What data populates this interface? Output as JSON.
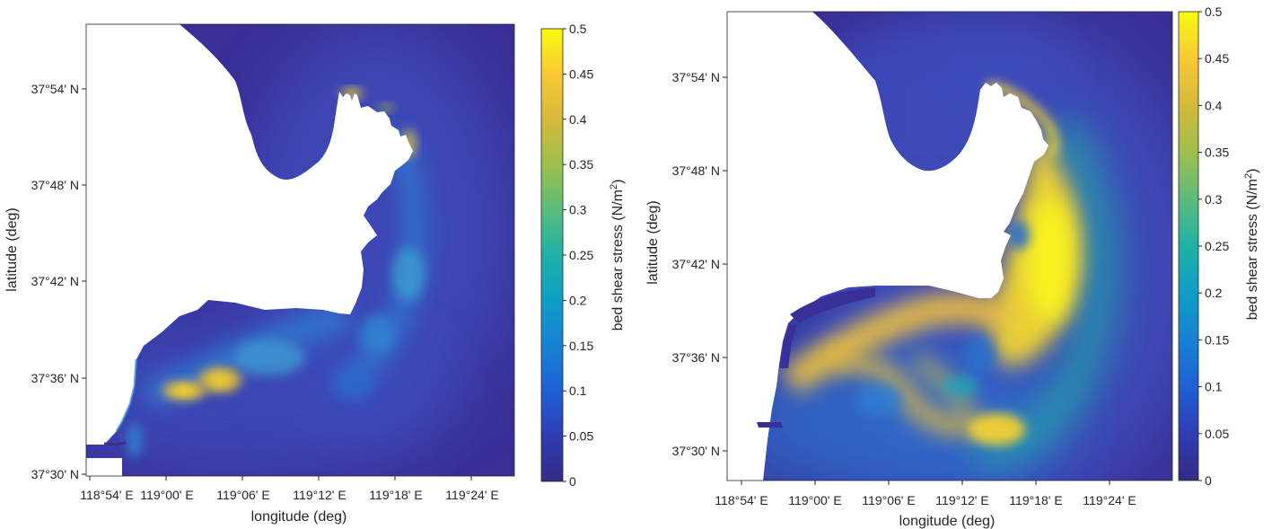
{
  "panels": [
    {
      "id": "left",
      "xlabel": "longitude (deg)",
      "ylabel": "latitude (deg)",
      "xticks": [
        "118°54' E",
        "119°00' E",
        "119°06' E",
        "119°12' E",
        "119°18' E",
        "119°24' E"
      ],
      "yticks": [
        "37°54' N",
        "37°48' N",
        "37°42' N",
        "37°36' N",
        "37°30' N"
      ],
      "colorbar": {
        "label": "bed shear stress (N/m",
        "label_sup": "2",
        "label_end": ")",
        "ticks": [
          "0.5",
          "0.45",
          "0.4",
          "0.35",
          "0.3",
          "0.25",
          "0.2",
          "0.15",
          "0.1",
          "0.05",
          "0"
        ],
        "range": [
          0,
          0.5
        ]
      }
    },
    {
      "id": "right",
      "xlabel": "longitude (deg)",
      "ylabel": "latitude (deg)",
      "xticks": [
        "118°54' E",
        "119°00' E",
        "119°06' E",
        "119°12' E",
        "119°18' E",
        "119°24' E"
      ],
      "yticks": [
        "37°54' N",
        "37°48' N",
        "37°42' N",
        "37°36' N",
        "37°30' N"
      ],
      "colorbar": {
        "label": "bed shear stress (N/m",
        "label_sup": "2",
        "label_end": ")",
        "ticks": [
          "0.5",
          "0.45",
          "0.4",
          "0.35",
          "0.3",
          "0.25",
          "0.2",
          "0.15",
          "0.1",
          "0.05",
          "0"
        ],
        "range": [
          0,
          0.5
        ]
      }
    }
  ],
  "colormap": "parula",
  "colors": {
    "low": "#3e2d8c",
    "mid_low": "#2b79c4",
    "mid": "#20b2aa",
    "mid_high": "#a8c23a",
    "high": "#f9e11f",
    "land": "#ffffff"
  }
}
